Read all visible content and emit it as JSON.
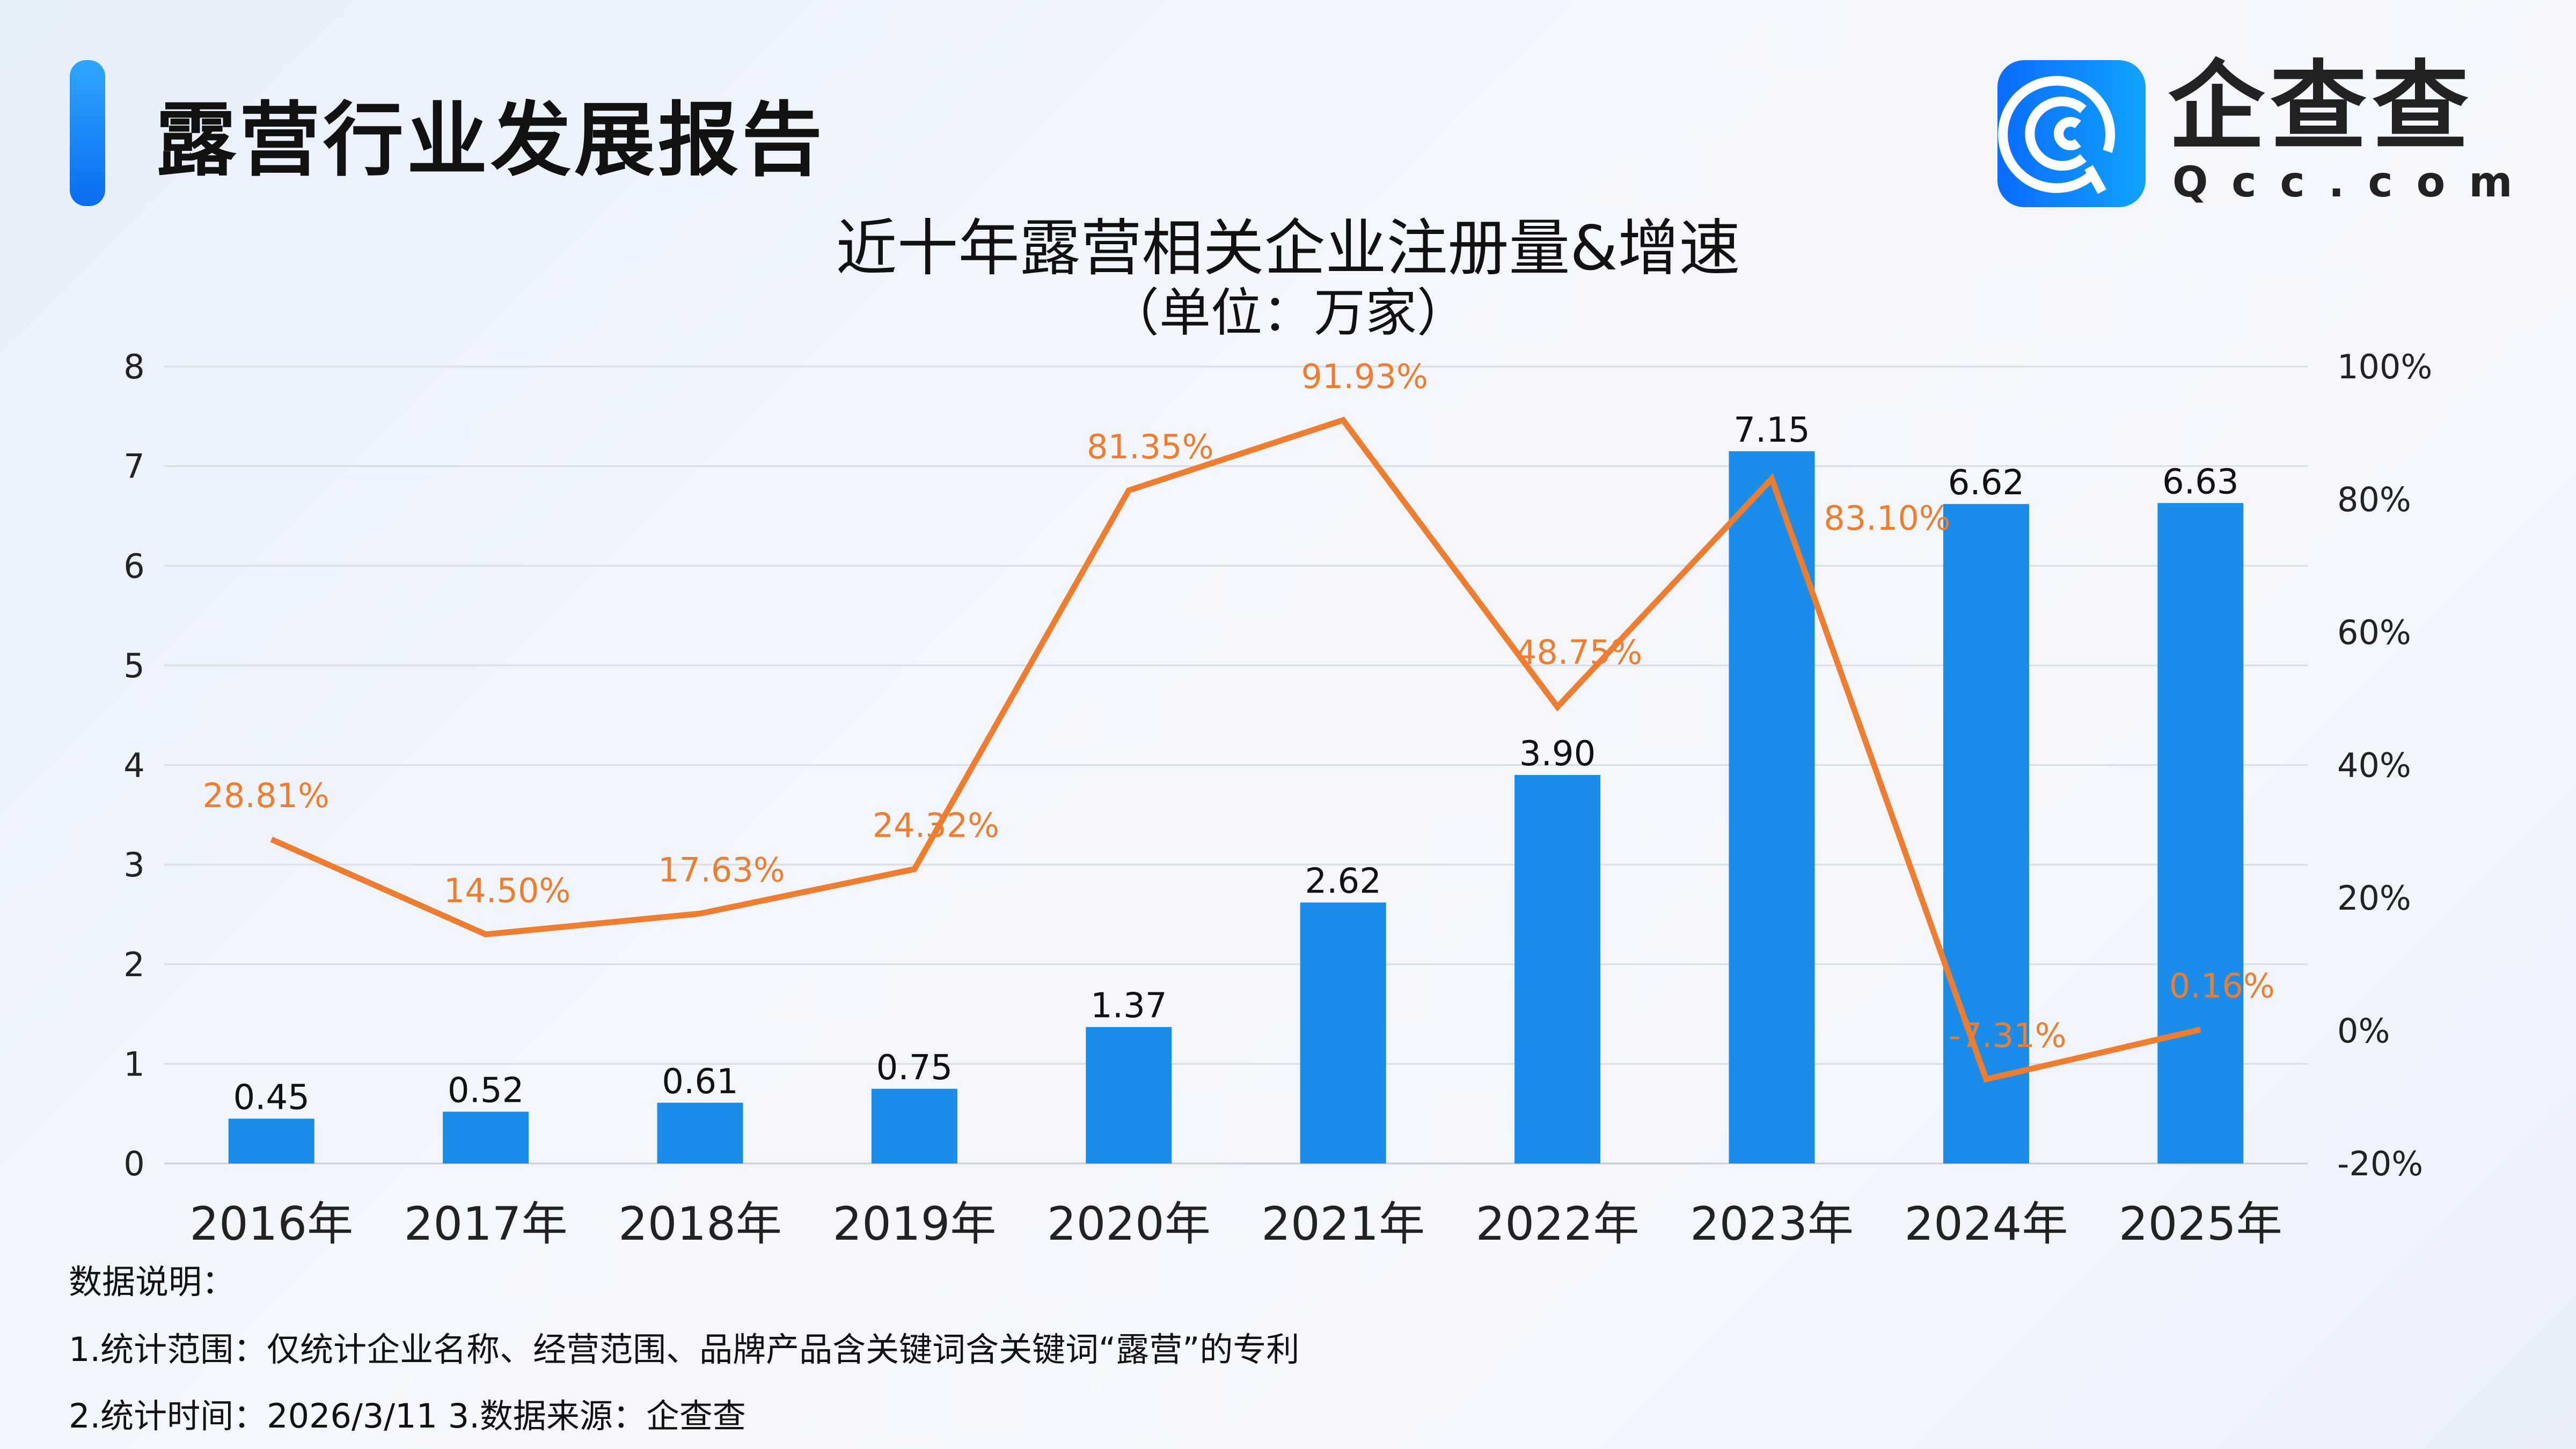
{
  "header": {
    "title": "露营行业发展报告"
  },
  "logo": {
    "name": "企查查",
    "domain": "Qcc.com"
  },
  "chart_data": {
    "type": "bar+line",
    "title": "近十年露营相关企业注册量&增速",
    "subtitle": "（单位：万家）",
    "categories": [
      "2016年",
      "2017年",
      "2018年",
      "2019年",
      "2020年",
      "2021年",
      "2022年",
      "2023年",
      "2024年",
      "2025年"
    ],
    "series": [
      {
        "name": "注册量",
        "type": "bar",
        "axis": "left",
        "color": "#1a8cea",
        "values": [
          0.45,
          0.52,
          0.61,
          0.75,
          1.37,
          2.62,
          3.9,
          7.15,
          6.62,
          6.63
        ],
        "labels": [
          "0.45",
          "0.52",
          "0.61",
          "0.75",
          "1.37",
          "2.62",
          "3.90",
          "7.15",
          "6.62",
          "6.63"
        ]
      },
      {
        "name": "增速",
        "type": "line",
        "axis": "right",
        "color": "#ee7d2f",
        "values": [
          28.81,
          14.5,
          17.63,
          24.32,
          81.35,
          91.93,
          48.75,
          83.1,
          -7.31,
          0.16
        ],
        "labels": [
          "28.81%",
          "14.50%",
          "17.63%",
          "24.32%",
          "81.35%",
          "91.93%",
          "48.75%",
          "83.10%",
          "-7.31%",
          "0.16%"
        ]
      }
    ],
    "left_axis": {
      "ylim": [
        0,
        8
      ],
      "ticks": [
        "0",
        "1",
        "2",
        "3",
        "4",
        "5",
        "6",
        "7",
        "8"
      ]
    },
    "right_axis": {
      "ylim": [
        -20,
        100
      ],
      "ticks": [
        "-20%",
        "0%",
        "20%",
        "40%",
        "60%",
        "80%",
        "100%"
      ]
    },
    "grid": true
  },
  "notes": {
    "heading": "数据说明：",
    "line1": "1.统计范围：仅统计企业名称、经营范围、品牌产品含关键词含关键词“露营”的专利",
    "line2": "2.统计时间：2026/3/11 3.数据来源：企查查"
  }
}
